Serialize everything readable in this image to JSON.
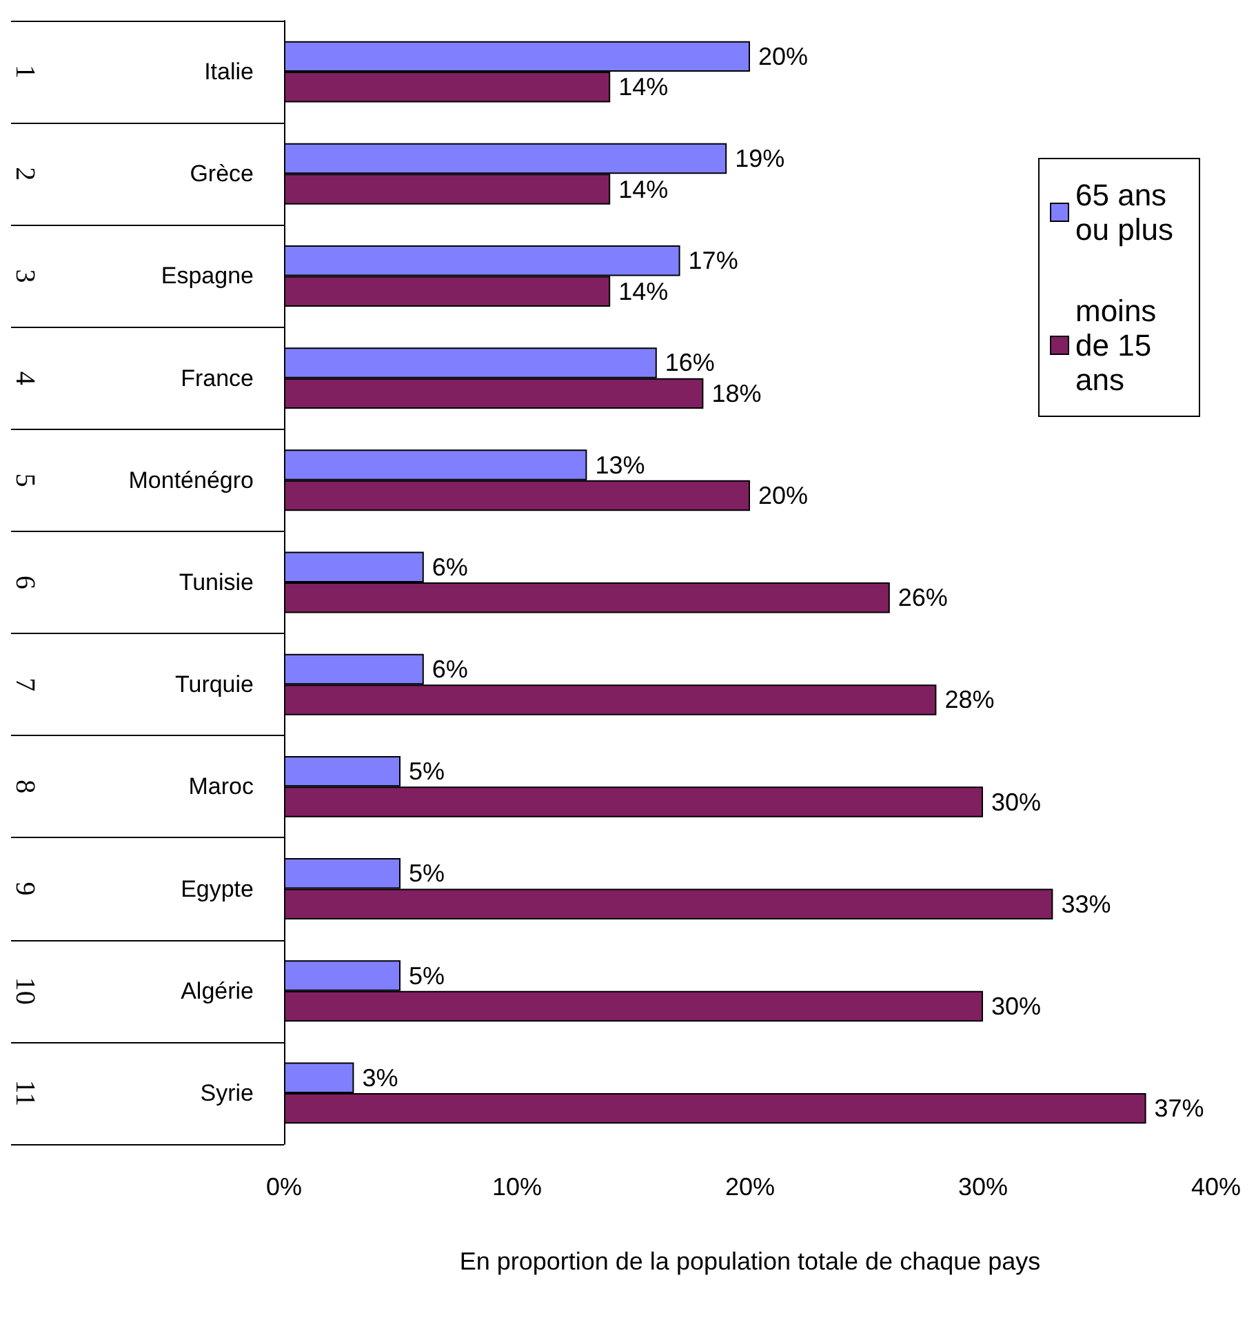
{
  "chart_data": {
    "type": "bar",
    "orientation": "horizontal",
    "categories": [
      "Italie",
      "Grèce",
      "Espagne",
      "France",
      "Monténégro",
      "Tunisie",
      "Turquie",
      "Maroc",
      "Egypte",
      "Algérie",
      "Syrie"
    ],
    "y2_categories": [
      "1",
      "2",
      "3",
      "4",
      "5",
      "6",
      "7",
      "8",
      "9",
      "10",
      "11"
    ],
    "series": [
      {
        "name": "65 ans ou plus",
        "color": "#8080ff",
        "values": [
          20,
          19,
          17,
          16,
          13,
          6,
          6,
          5,
          5,
          5,
          3
        ],
        "value_labels": [
          "20%",
          "19%",
          "17%",
          "16%",
          "13%",
          "6%",
          "6%",
          "5%",
          "5%",
          "5%",
          "3%"
        ]
      },
      {
        "name": "moins de 15 ans",
        "color": "#802060",
        "values": [
          14,
          14,
          14,
          18,
          20,
          26,
          28,
          30,
          33,
          30,
          37
        ],
        "value_labels": [
          "14%",
          "14%",
          "14%",
          "18%",
          "20%",
          "26%",
          "28%",
          "30%",
          "33%",
          "30%",
          "37%"
        ]
      }
    ],
    "xlim": [
      0,
      40
    ],
    "xticks": [
      {
        "value": 0,
        "label": "0%"
      },
      {
        "value": 10,
        "label": "10%"
      },
      {
        "value": 20,
        "label": "20%"
      },
      {
        "value": 30,
        "label": "30%"
      },
      {
        "value": 40,
        "label": "40%"
      }
    ],
    "xlabel": "En proportion de la population totale de chaque pays",
    "legend": "top right",
    "grid": false
  }
}
